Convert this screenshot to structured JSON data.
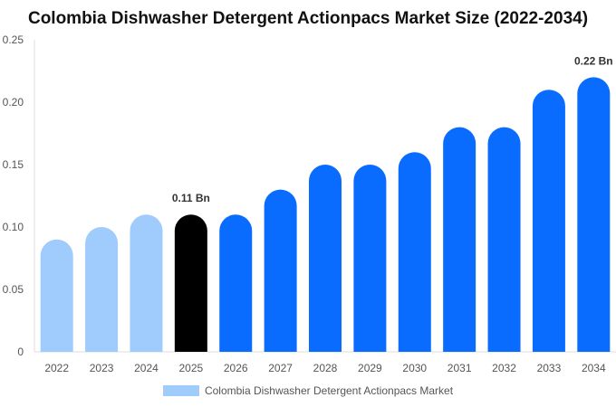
{
  "chart_data": {
    "type": "bar",
    "title": "Colombia Dishwasher Detergent Actionpacs Market Size (2022-2034)",
    "categories": [
      "2022",
      "2023",
      "2024",
      "2025",
      "2026",
      "2027",
      "2028",
      "2029",
      "2030",
      "2031",
      "2032",
      "2033",
      "2034"
    ],
    "series": [
      {
        "name": "Colombia Dishwasher Detergent Actionpacs Market",
        "values": [
          0.09,
          0.1,
          0.11,
          0.11,
          0.11,
          0.13,
          0.15,
          0.15,
          0.16,
          0.18,
          0.18,
          0.21,
          0.22
        ]
      }
    ],
    "data_labels": [
      {
        "category": "2025",
        "text": "0.11 Bn"
      },
      {
        "category": "2034",
        "text": "0.22 Bn"
      }
    ],
    "ylim": [
      0,
      0.25
    ],
    "yticks": [
      0,
      0.05,
      0.1,
      0.15,
      0.2,
      0.25
    ],
    "ytick_labels": [
      "0",
      "0.05",
      "0.10",
      "0.15",
      "0.20",
      "0.25"
    ],
    "xlabel": "",
    "ylabel": "",
    "grid": false,
    "legend_position": "bottom",
    "colors": {
      "historical": "#a0cbfd",
      "current": "#000000",
      "forecast": "#0a6cff",
      "legend_swatch": "#a0cbfd"
    },
    "historical_count": 3,
    "current_index": 3
  }
}
